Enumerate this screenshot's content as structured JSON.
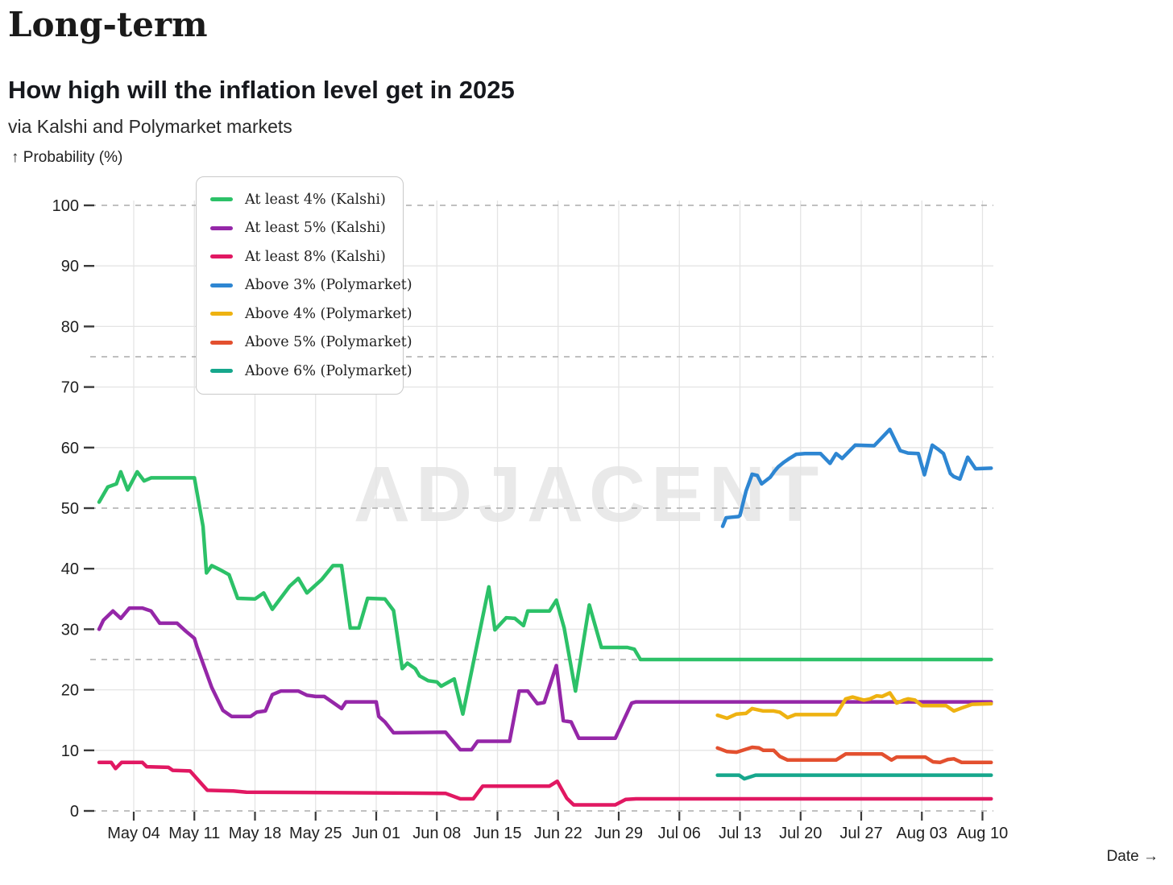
{
  "header": {
    "title": "Long-term",
    "subtitle": "How high will the inflation level get in 2025",
    "source": "via Kalshi and Polymarket markets",
    "y_axis_label": "↑ Probability (%)",
    "x_axis_label": "Date →"
  },
  "watermark": "ADJACENT",
  "colors": {
    "grid_solid": "#e4e4e4",
    "grid_dashed": "#ababab",
    "tick": "#3a3a3a",
    "tick_text": "#1f1f1f",
    "watermark": "#e9e9e9",
    "legend_border": "#c9c9c9"
  },
  "chart_data": {
    "type": "line",
    "title": "How high will the inflation level get in 2025",
    "xlabel": "Date",
    "ylabel": "Probability (%)",
    "ylim": [
      0,
      100
    ],
    "grid": true,
    "legend_position": "top-left",
    "x_unit": "days since 2025-05-01 (t=3 is the May 04 tick)",
    "x_ticks": [
      {
        "t": 3,
        "label": "May 04"
      },
      {
        "t": 10,
        "label": "May 11"
      },
      {
        "t": 17,
        "label": "May 18"
      },
      {
        "t": 24,
        "label": "May 25"
      },
      {
        "t": 31,
        "label": "Jun 01"
      },
      {
        "t": 38,
        "label": "Jun 08"
      },
      {
        "t": 45,
        "label": "Jun 15"
      },
      {
        "t": 52,
        "label": "Jun 22"
      },
      {
        "t": 59,
        "label": "Jun 29"
      },
      {
        "t": 66,
        "label": "Jul 06"
      },
      {
        "t": 73,
        "label": "Jul 13"
      },
      {
        "t": 80,
        "label": "Jul 20"
      },
      {
        "t": 87,
        "label": "Jul 27"
      },
      {
        "t": 94,
        "label": "Aug 03"
      },
      {
        "t": 101,
        "label": "Aug 10"
      }
    ],
    "y_ticks": [
      0,
      10,
      20,
      30,
      40,
      50,
      60,
      70,
      80,
      90,
      100
    ],
    "dashed_gridlines": [
      0,
      25,
      50,
      75,
      100
    ],
    "series": [
      {
        "name": "At least 4% (Kalshi)",
        "color": "#2cc168",
        "points": [
          [
            -1,
            51
          ],
          [
            0,
            53.5
          ],
          [
            1,
            54
          ],
          [
            1.5,
            56
          ],
          [
            2.3,
            53
          ],
          [
            3.4,
            56
          ],
          [
            4.2,
            54.5
          ],
          [
            5,
            55
          ],
          [
            10,
            55
          ],
          [
            11,
            47
          ],
          [
            11.4,
            39.3
          ],
          [
            12,
            40.5
          ],
          [
            13,
            39.8
          ],
          [
            14,
            39
          ],
          [
            15,
            35.1
          ],
          [
            17,
            35
          ],
          [
            18,
            36
          ],
          [
            19,
            33.3
          ],
          [
            21,
            37.1
          ],
          [
            22,
            38.4
          ],
          [
            23,
            36
          ],
          [
            24.7,
            38.2
          ],
          [
            26,
            40.5
          ],
          [
            27,
            40.5
          ],
          [
            28,
            30.2
          ],
          [
            29,
            30.2
          ],
          [
            30,
            35.1
          ],
          [
            32,
            35
          ],
          [
            33,
            33.1
          ],
          [
            34,
            23.5
          ],
          [
            34.6,
            24.4
          ],
          [
            35.5,
            23.5
          ],
          [
            36,
            22.3
          ],
          [
            37,
            21.5
          ],
          [
            38,
            21.3
          ],
          [
            38.5,
            20.6
          ],
          [
            40,
            21.8
          ],
          [
            41,
            16
          ],
          [
            44,
            37
          ],
          [
            44.7,
            29.9
          ],
          [
            46,
            31.9
          ],
          [
            47,
            31.8
          ],
          [
            48,
            30.6
          ],
          [
            48.5,
            33
          ],
          [
            51,
            33
          ],
          [
            51.8,
            34.8
          ],
          [
            52.7,
            30.2
          ],
          [
            54,
            19.8
          ],
          [
            55.6,
            34
          ],
          [
            57,
            27
          ],
          [
            60,
            27
          ],
          [
            60.8,
            26.7
          ],
          [
            61.5,
            25
          ],
          [
            102,
            25
          ]
        ]
      },
      {
        "name": "At least 5% (Kalshi)",
        "color": "#9527a8",
        "points": [
          [
            -1,
            30
          ],
          [
            -0.5,
            31.5
          ],
          [
            0.6,
            33
          ],
          [
            1.5,
            31.8
          ],
          [
            2.5,
            33.5
          ],
          [
            4,
            33.5
          ],
          [
            5,
            33
          ],
          [
            6,
            31
          ],
          [
            8,
            31
          ],
          [
            9,
            29.7
          ],
          [
            10,
            28.5
          ],
          [
            10.3,
            27.1
          ],
          [
            12,
            20.4
          ],
          [
            13.3,
            16.6
          ],
          [
            14.3,
            15.6
          ],
          [
            16.5,
            15.6
          ],
          [
            17.2,
            16.3
          ],
          [
            18.2,
            16.5
          ],
          [
            19,
            19.2
          ],
          [
            20,
            19.8
          ],
          [
            22,
            19.8
          ],
          [
            23,
            19.1
          ],
          [
            24,
            18.9
          ],
          [
            25,
            18.9
          ],
          [
            26,
            17.9
          ],
          [
            27,
            16.9
          ],
          [
            27.5,
            18
          ],
          [
            31,
            18
          ],
          [
            31.3,
            15.6
          ],
          [
            32,
            14.7
          ],
          [
            33,
            12.9
          ],
          [
            39,
            13
          ],
          [
            40.7,
            10.1
          ],
          [
            42,
            10.1
          ],
          [
            42.7,
            11.5
          ],
          [
            46.4,
            11.5
          ],
          [
            47.5,
            19.8
          ],
          [
            48.5,
            19.8
          ],
          [
            49.6,
            17.7
          ],
          [
            50.4,
            17.9
          ],
          [
            51.8,
            24
          ],
          [
            52.6,
            14.9
          ],
          [
            53.5,
            14.7
          ],
          [
            54.4,
            12
          ],
          [
            58.6,
            12
          ],
          [
            60.5,
            17.8
          ],
          [
            61,
            18
          ],
          [
            102,
            18
          ]
        ]
      },
      {
        "name": "At least 8% (Kalshi)",
        "color": "#e11862",
        "points": [
          [
            -1,
            8
          ],
          [
            0.4,
            8
          ],
          [
            0.9,
            7
          ],
          [
            1.6,
            8
          ],
          [
            4,
            8
          ],
          [
            4.5,
            7.3
          ],
          [
            7,
            7.2
          ],
          [
            7.5,
            6.7
          ],
          [
            9.5,
            6.6
          ],
          [
            11.5,
            3.4
          ],
          [
            14.5,
            3.3
          ],
          [
            16,
            3.1
          ],
          [
            39,
            2.9
          ],
          [
            40.7,
            2
          ],
          [
            42.2,
            2
          ],
          [
            43.3,
            4.1
          ],
          [
            51,
            4.1
          ],
          [
            51.9,
            4.9
          ],
          [
            53,
            2.1
          ],
          [
            53.8,
            1
          ],
          [
            58.6,
            1
          ],
          [
            59.8,
            1.9
          ],
          [
            61,
            2
          ],
          [
            102,
            2
          ]
        ]
      },
      {
        "name": "Above 3% (Polymarket)",
        "color": "#2e86d2",
        "points": [
          [
            71,
            47
          ],
          [
            71.4,
            48.4
          ],
          [
            72,
            48.5
          ],
          [
            72.8,
            48.6
          ],
          [
            73,
            48.8
          ],
          [
            73.7,
            52.8
          ],
          [
            74.4,
            55.6
          ],
          [
            75,
            55.4
          ],
          [
            75.5,
            54
          ],
          [
            76.5,
            55.1
          ],
          [
            77,
            56.1
          ],
          [
            77.4,
            56.8
          ],
          [
            78.1,
            57.6
          ],
          [
            78.6,
            58.1
          ],
          [
            79.5,
            58.9
          ],
          [
            80.5,
            59
          ],
          [
            82.3,
            59
          ],
          [
            83.4,
            57.4
          ],
          [
            84.1,
            59
          ],
          [
            84.8,
            58.2
          ],
          [
            86.3,
            60.4
          ],
          [
            88.5,
            60.3
          ],
          [
            90.3,
            63
          ],
          [
            91.5,
            59.5
          ],
          [
            92.4,
            59.1
          ],
          [
            93.6,
            59
          ],
          [
            94.3,
            55.5
          ],
          [
            95.2,
            60.4
          ],
          [
            95.9,
            59.7
          ],
          [
            96.5,
            59
          ],
          [
            97.3,
            55.7
          ],
          [
            97.7,
            55.2
          ],
          [
            98.4,
            54.8
          ],
          [
            99.3,
            58.4
          ],
          [
            100.2,
            56.5
          ],
          [
            102,
            56.6
          ]
        ]
      },
      {
        "name": "Above 4% (Polymarket)",
        "color": "#eeb211",
        "points": [
          [
            70.4,
            15.8
          ],
          [
            71.5,
            15.3
          ],
          [
            72.6,
            16
          ],
          [
            73.7,
            16.1
          ],
          [
            74.4,
            16.9
          ],
          [
            75.7,
            16.5
          ],
          [
            76.9,
            16.5
          ],
          [
            77.6,
            16.3
          ],
          [
            78.5,
            15.4
          ],
          [
            79.4,
            15.9
          ],
          [
            84.1,
            15.9
          ],
          [
            85.2,
            18.5
          ],
          [
            86,
            18.8
          ],
          [
            87.3,
            18.3
          ],
          [
            88,
            18.5
          ],
          [
            88.8,
            19
          ],
          [
            89.4,
            18.9
          ],
          [
            90.3,
            19.5
          ],
          [
            91.1,
            17.8
          ],
          [
            91.9,
            18.3
          ],
          [
            92.4,
            18.5
          ],
          [
            93.2,
            18.3
          ],
          [
            94,
            17.4
          ],
          [
            96.8,
            17.4
          ],
          [
            97.7,
            16.5
          ],
          [
            98.6,
            17
          ],
          [
            99.8,
            17.6
          ],
          [
            102,
            17.7
          ]
        ]
      },
      {
        "name": "Above 5% (Polymarket)",
        "color": "#e3502f",
        "points": [
          [
            70.4,
            10.4
          ],
          [
            71.5,
            9.8
          ],
          [
            72.6,
            9.7
          ],
          [
            74.4,
            10.5
          ],
          [
            75.2,
            10.4
          ],
          [
            75.7,
            10
          ],
          [
            76.9,
            10
          ],
          [
            77.6,
            9
          ],
          [
            78.5,
            8.4
          ],
          [
            84.1,
            8.4
          ],
          [
            85.2,
            9.4
          ],
          [
            89.4,
            9.4
          ],
          [
            90.5,
            8.4
          ],
          [
            91.1,
            8.9
          ],
          [
            94.4,
            8.9
          ],
          [
            95.3,
            8.1
          ],
          [
            96.1,
            8
          ],
          [
            97,
            8.5
          ],
          [
            97.7,
            8.6
          ],
          [
            98.6,
            8
          ],
          [
            102,
            8
          ]
        ]
      },
      {
        "name": "Above 6% (Polymarket)",
        "color": "#16a78c",
        "points": [
          [
            70.4,
            5.9
          ],
          [
            72.9,
            5.9
          ],
          [
            73.5,
            5.3
          ],
          [
            74.8,
            5.9
          ],
          [
            102,
            5.9
          ]
        ]
      }
    ]
  }
}
